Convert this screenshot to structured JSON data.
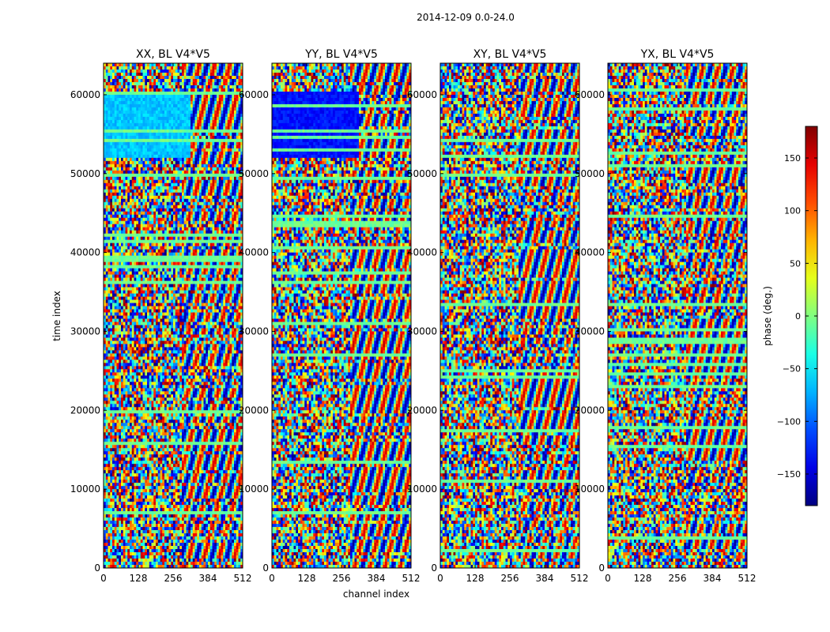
{
  "chart_data": {
    "type": "heatmap",
    "suptitle": "2014-12-09 0.0-24.0",
    "xlabel": "channel index",
    "ylabel": "time index",
    "x_ticks": [
      "0",
      "128",
      "256",
      "384",
      "512"
    ],
    "y_ticks": [
      "0",
      "10000",
      "20000",
      "30000",
      "40000",
      "50000",
      "60000"
    ],
    "xlim": [
      0,
      512
    ],
    "ylim": [
      0,
      64000
    ],
    "colormap": "jet",
    "colorbar": {
      "label": "phase (deg.)",
      "range": [
        -180,
        180
      ],
      "ticks": [
        "150",
        "100",
        "50",
        "0",
        "−50",
        "−100",
        "−150"
      ],
      "tick_values": [
        150,
        100,
        50,
        0,
        -50,
        -100,
        -150
      ]
    },
    "panels": [
      {
        "title": "XX, BL V4*V5",
        "polarization": "XX"
      },
      {
        "title": "YY, BL V4*V5",
        "polarization": "YY"
      },
      {
        "title": "XY, BL V4*V5",
        "polarization": "XY"
      },
      {
        "title": "YX, BL V4*V5",
        "polarization": "YX"
      }
    ]
  }
}
